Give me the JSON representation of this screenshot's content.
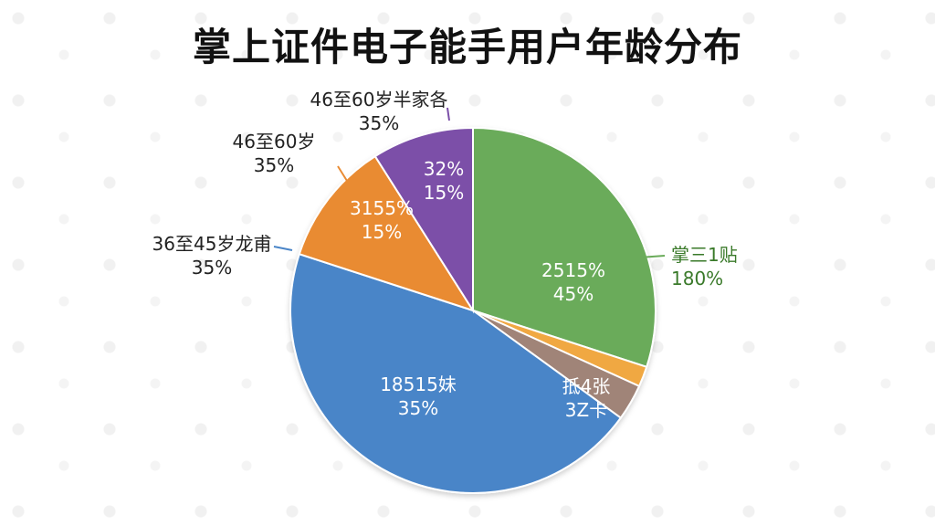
{
  "title": "掌上证件电子能手用户年龄分布",
  "chart_data": {
    "type": "pie",
    "title": "掌上证件电子能手用户年龄分布",
    "slices": [
      {
        "value": 30,
        "color": "#6aab5a",
        "label": "2515%",
        "pct": "45%",
        "outer_lines": [
          "掌三1贴",
          "180%"
        ],
        "outer_color": "#3a7a2a"
      },
      {
        "value": 1.8,
        "color": "#f0a843",
        "label": "",
        "pct": "",
        "outer_lines": [],
        "outer_color": "#333333"
      },
      {
        "value": 3.2,
        "color": "#a08478",
        "label": "抵4张",
        "pct": "3Z卡",
        "outer_lines": [],
        "outer_color": "#333333"
      },
      {
        "value": 45,
        "color": "#4a85c8",
        "label": "18515妹",
        "pct": "35%",
        "outer_lines": [
          "36至45岁龙甫",
          "35%"
        ],
        "outer_color": "#222222"
      },
      {
        "value": 11,
        "color": "#e98b33",
        "label": "3155%",
        "pct": "15%",
        "outer_lines": [
          "46至60岁",
          "35%"
        ],
        "outer_color": "#222222"
      },
      {
        "value": 9,
        "color": "#7b4fa8",
        "label": "32%",
        "pct": "15%",
        "outer_lines": [
          "46至60岁半家各",
          "35%"
        ],
        "outer_color": "#222222"
      }
    ]
  }
}
